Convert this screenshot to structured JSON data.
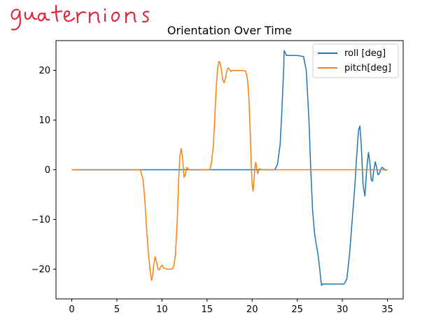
{
  "annotation": {
    "handwritten_text": "quaternions",
    "color": "#e0283c"
  },
  "chart_data": {
    "type": "line",
    "title": "Orientation Over Time",
    "xlabel": "",
    "ylabel": "",
    "xlim": [
      -1.75,
      36.75
    ],
    "ylim": [
      -26.0,
      26.0
    ],
    "xticks": [
      0,
      5,
      10,
      15,
      20,
      25,
      30,
      35
    ],
    "yticks": [
      -20,
      -10,
      0,
      10,
      20
    ],
    "ytick_labels": [
      "−20",
      "−10",
      "0",
      "10",
      "20"
    ],
    "grid": false,
    "legend_position": "upper right",
    "series": [
      {
        "name": "roll [deg]",
        "color": "#1f77b4",
        "x": [
          0,
          22.5,
          22.8,
          23.1,
          23.3,
          23.5,
          23.55,
          23.7,
          23.8,
          24.2,
          25.0,
          25.7,
          26.0,
          26.3,
          26.5,
          26.7,
          26.9,
          27.1,
          27.3,
          27.5,
          27.6,
          27.7,
          27.8,
          28.5,
          29.5,
          30.2,
          30.5,
          30.8,
          31.1,
          31.4,
          31.6,
          31.8,
          31.95,
          32.1,
          32.3,
          32.5,
          32.7,
          32.9,
          33.05,
          33.2,
          33.35,
          33.5,
          33.65,
          33.8,
          33.95,
          34.1,
          34.25,
          34.4,
          34.6,
          34.8,
          35.0
        ],
        "y": [
          0,
          0,
          1.0,
          5.0,
          12.0,
          20.5,
          24.0,
          23.5,
          23.0,
          23.0,
          23.0,
          22.8,
          20.0,
          10.0,
          0,
          -8.0,
          -12.5,
          -15.0,
          -17.0,
          -20.0,
          -22.0,
          -23.3,
          -23.0,
          -23.0,
          -23.0,
          -23.0,
          -22.0,
          -17.0,
          -10.0,
          -3.0,
          3.0,
          8.0,
          8.8,
          5.0,
          -3.0,
          -5.3,
          0,
          3.5,
          1.5,
          -2.0,
          -2.3,
          0,
          1.6,
          0.5,
          -1.0,
          -0.8,
          0,
          0.5,
          0.2,
          -0.1,
          0
        ]
      },
      {
        "name": "pitch[deg]",
        "color": "#ff7f0e",
        "x": [
          0,
          7.6,
          7.9,
          8.1,
          8.3,
          8.5,
          8.7,
          8.85,
          8.95,
          9.1,
          9.25,
          9.4,
          9.55,
          9.7,
          9.85,
          10.0,
          10.2,
          10.6,
          11.1,
          11.3,
          11.5,
          11.7,
          11.85,
          12.0,
          12.15,
          12.3,
          12.45,
          12.6,
          12.75,
          12.9,
          13.0,
          15.3,
          15.5,
          15.7,
          15.85,
          16.0,
          16.15,
          16.3,
          16.45,
          16.6,
          16.75,
          16.9,
          17.05,
          17.2,
          17.35,
          17.5,
          17.65,
          17.8,
          18.0,
          18.5,
          19.0,
          19.3,
          19.5,
          19.65,
          19.8,
          19.9,
          20.0,
          20.1,
          20.2,
          20.3,
          20.4,
          20.5,
          20.6,
          20.7,
          20.8,
          21.0,
          22.0,
          35.0
        ],
        "y": [
          0,
          0,
          -2.0,
          -6.0,
          -12.0,
          -17.0,
          -20.5,
          -22.3,
          -21.5,
          -19.0,
          -17.5,
          -18.5,
          -20.0,
          -20.2,
          -19.5,
          -19.2,
          -19.8,
          -20.0,
          -20.0,
          -19.5,
          -17.0,
          -10.0,
          -2.0,
          3.0,
          4.3,
          2.0,
          -1.5,
          -1.0,
          0.5,
          0.2,
          0,
          0,
          1.5,
          5.0,
          10.0,
          16.0,
          20.0,
          21.8,
          21.5,
          20.0,
          18.0,
          17.5,
          18.5,
          20.0,
          20.5,
          20.2,
          19.8,
          20.0,
          20.0,
          20.0,
          20.0,
          19.8,
          18.0,
          14.0,
          7.0,
          1.0,
          -3.0,
          -4.3,
          -2.5,
          0.5,
          1.5,
          0.5,
          -0.8,
          -0.3,
          0.2,
          0,
          0,
          0
        ]
      }
    ]
  }
}
